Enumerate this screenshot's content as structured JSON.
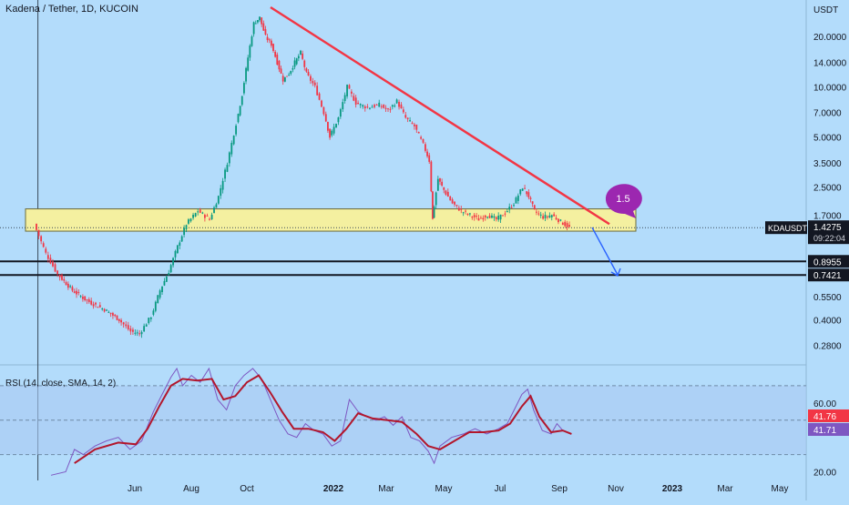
{
  "chart_title": "Kadena / Tether, 1D, KUCOIN",
  "currency_label": "USDT",
  "price_axis": {
    "scale": "log",
    "ylim": [
      0.24,
      30
    ],
    "ticks": [
      "20.0000",
      "14.0000",
      "10.0000",
      "7.0000",
      "5.0000",
      "3.5000",
      "2.5000",
      "1.7000",
      "0.5500",
      "0.4000",
      "0.2800"
    ],
    "tick_values": [
      20,
      14,
      10,
      7,
      5,
      3.5,
      2.5,
      1.7,
      0.55,
      0.4,
      0.28
    ]
  },
  "x_ticks": [
    "Jun",
    "Aug",
    "Oct",
    "2022",
    "Mar",
    "May",
    "Jul",
    "Sep",
    "Nov",
    "2023",
    "Mar",
    "May"
  ],
  "current_price": {
    "symbol": "KDAUSDT",
    "price": "1.4275",
    "countdown": "09:22:04",
    "color": "#131722"
  },
  "levels": [
    {
      "label": "0.8955",
      "value": 0.8955
    },
    {
      "label": "0.7421",
      "value": 0.7421
    }
  ],
  "support_zone": {
    "low": 1.36,
    "high": 1.85,
    "color": "#f4f0a0"
  },
  "callout": {
    "label": "1.5",
    "color": "#9c27b0"
  },
  "trendline": {
    "color": "#f23645"
  },
  "projection_arrow": {
    "color": "#2962ff"
  },
  "candle_colors": {
    "up": "#089981",
    "down": "#f23645"
  },
  "price_path": [
    {
      "t": 0,
      "p": 1.5
    },
    {
      "t": 0.4,
      "p": 1.0
    },
    {
      "t": 0.8,
      "p": 0.75
    },
    {
      "t": 1.3,
      "p": 0.6
    },
    {
      "t": 1.8,
      "p": 0.52
    },
    {
      "t": 2.4,
      "p": 0.46
    },
    {
      "t": 2.9,
      "p": 0.4
    },
    {
      "t": 3.3,
      "p": 0.34
    },
    {
      "t": 3.6,
      "p": 0.33
    },
    {
      "t": 4.0,
      "p": 0.42
    },
    {
      "t": 4.3,
      "p": 0.6
    },
    {
      "t": 4.6,
      "p": 0.78
    },
    {
      "t": 4.9,
      "p": 1.1
    },
    {
      "t": 5.2,
      "p": 1.5
    },
    {
      "t": 5.6,
      "p": 1.8
    },
    {
      "t": 6.0,
      "p": 1.6
    },
    {
      "t": 6.3,
      "p": 2.2
    },
    {
      "t": 6.6,
      "p": 3.5
    },
    {
      "t": 6.9,
      "p": 6.0
    },
    {
      "t": 7.1,
      "p": 9.0
    },
    {
      "t": 7.3,
      "p": 15.0
    },
    {
      "t": 7.5,
      "p": 24.0
    },
    {
      "t": 7.7,
      "p": 26.0
    },
    {
      "t": 7.9,
      "p": 20.0
    },
    {
      "t": 8.1,
      "p": 18.0
    },
    {
      "t": 8.3,
      "p": 14.0
    },
    {
      "t": 8.5,
      "p": 11.0
    },
    {
      "t": 8.7,
      "p": 12.0
    },
    {
      "t": 8.9,
      "p": 14.0
    },
    {
      "t": 9.1,
      "p": 16.0
    },
    {
      "t": 9.3,
      "p": 12.0
    },
    {
      "t": 9.6,
      "p": 10.0
    },
    {
      "t": 9.9,
      "p": 7.0
    },
    {
      "t": 10.1,
      "p": 5.0
    },
    {
      "t": 10.4,
      "p": 6.5
    },
    {
      "t": 10.7,
      "p": 10.0
    },
    {
      "t": 11.0,
      "p": 8.0
    },
    {
      "t": 11.4,
      "p": 7.5
    },
    {
      "t": 11.8,
      "p": 7.8
    },
    {
      "t": 12.1,
      "p": 7.2
    },
    {
      "t": 12.4,
      "p": 8.2
    },
    {
      "t": 12.7,
      "p": 6.5
    },
    {
      "t": 13.0,
      "p": 5.8
    },
    {
      "t": 13.3,
      "p": 4.5
    },
    {
      "t": 13.5,
      "p": 3.6
    },
    {
      "t": 13.6,
      "p": 1.6
    },
    {
      "t": 13.8,
      "p": 2.8
    },
    {
      "t": 14.0,
      "p": 2.4
    },
    {
      "t": 14.3,
      "p": 2.0
    },
    {
      "t": 14.6,
      "p": 1.8
    },
    {
      "t": 14.9,
      "p": 1.7
    },
    {
      "t": 15.2,
      "p": 1.6
    },
    {
      "t": 15.5,
      "p": 1.7
    },
    {
      "t": 15.8,
      "p": 1.6
    },
    {
      "t": 16.1,
      "p": 1.75
    },
    {
      "t": 16.4,
      "p": 2.0
    },
    {
      "t": 16.7,
      "p": 2.5
    },
    {
      "t": 16.9,
      "p": 2.2
    },
    {
      "t": 17.1,
      "p": 1.8
    },
    {
      "t": 17.4,
      "p": 1.65
    },
    {
      "t": 17.7,
      "p": 1.7
    },
    {
      "t": 18.0,
      "p": 1.55
    },
    {
      "t": 18.3,
      "p": 1.43
    }
  ],
  "rsi": {
    "label": "RSI (14, close, SMA, 14, 2)",
    "ticks": [
      "60.00",
      "20.00"
    ],
    "tick_values": [
      60,
      20
    ],
    "ylim": [
      15,
      80
    ],
    "bands": [
      70,
      50,
      30
    ],
    "value_label": "41.76",
    "value_label_color": "#f23645",
    "sma_label": "41.71",
    "sma_label_color": "#7e57c2",
    "rsi_color": "#7e57c2",
    "sma_color": "#b2162c",
    "rsi_path": [
      {
        "t": 0.5,
        "v": 18
      },
      {
        "t": 1.0,
        "v": 20
      },
      {
        "t": 1.3,
        "v": 33
      },
      {
        "t": 1.6,
        "v": 30
      },
      {
        "t": 2.0,
        "v": 35
      },
      {
        "t": 2.4,
        "v": 38
      },
      {
        "t": 2.8,
        "v": 40
      },
      {
        "t": 3.2,
        "v": 33
      },
      {
        "t": 3.6,
        "v": 38
      },
      {
        "t": 4.0,
        "v": 55
      },
      {
        "t": 4.3,
        "v": 65
      },
      {
        "t": 4.6,
        "v": 75
      },
      {
        "t": 4.8,
        "v": 80
      },
      {
        "t": 5.0,
        "v": 70
      },
      {
        "t": 5.3,
        "v": 76
      },
      {
        "t": 5.6,
        "v": 72
      },
      {
        "t": 5.9,
        "v": 80
      },
      {
        "t": 6.2,
        "v": 62
      },
      {
        "t": 6.5,
        "v": 56
      },
      {
        "t": 6.8,
        "v": 70
      },
      {
        "t": 7.1,
        "v": 76
      },
      {
        "t": 7.4,
        "v": 80
      },
      {
        "t": 7.7,
        "v": 74
      },
      {
        "t": 8.0,
        "v": 62
      },
      {
        "t": 8.3,
        "v": 50
      },
      {
        "t": 8.6,
        "v": 42
      },
      {
        "t": 8.9,
        "v": 40
      },
      {
        "t": 9.2,
        "v": 48
      },
      {
        "t": 9.5,
        "v": 44
      },
      {
        "t": 9.8,
        "v": 42
      },
      {
        "t": 10.1,
        "v": 35
      },
      {
        "t": 10.4,
        "v": 38
      },
      {
        "t": 10.7,
        "v": 62
      },
      {
        "t": 11.0,
        "v": 55
      },
      {
        "t": 11.3,
        "v": 52
      },
      {
        "t": 11.6,
        "v": 50
      },
      {
        "t": 11.9,
        "v": 52
      },
      {
        "t": 12.2,
        "v": 47
      },
      {
        "t": 12.5,
        "v": 52
      },
      {
        "t": 12.8,
        "v": 40
      },
      {
        "t": 13.1,
        "v": 38
      },
      {
        "t": 13.4,
        "v": 32
      },
      {
        "t": 13.6,
        "v": 25
      },
      {
        "t": 13.8,
        "v": 35
      },
      {
        "t": 14.2,
        "v": 40
      },
      {
        "t": 14.6,
        "v": 42
      },
      {
        "t": 15.0,
        "v": 45
      },
      {
        "t": 15.4,
        "v": 42
      },
      {
        "t": 15.8,
        "v": 45
      },
      {
        "t": 16.1,
        "v": 48
      },
      {
        "t": 16.4,
        "v": 58
      },
      {
        "t": 16.6,
        "v": 65
      },
      {
        "t": 16.8,
        "v": 68
      },
      {
        "t": 17.0,
        "v": 56
      },
      {
        "t": 17.3,
        "v": 44
      },
      {
        "t": 17.6,
        "v": 42
      },
      {
        "t": 17.8,
        "v": 48
      },
      {
        "t": 18.0,
        "v": 44
      },
      {
        "t": 18.3,
        "v": 42
      }
    ],
    "sma_path": [
      {
        "t": 1.3,
        "v": 25
      },
      {
        "t": 2.0,
        "v": 33
      },
      {
        "t": 2.8,
        "v": 37
      },
      {
        "t": 3.4,
        "v": 36
      },
      {
        "t": 3.8,
        "v": 45
      },
      {
        "t": 4.2,
        "v": 58
      },
      {
        "t": 4.6,
        "v": 70
      },
      {
        "t": 5.0,
        "v": 74
      },
      {
        "t": 5.5,
        "v": 73
      },
      {
        "t": 6.0,
        "v": 74
      },
      {
        "t": 6.4,
        "v": 62
      },
      {
        "t": 6.8,
        "v": 64
      },
      {
        "t": 7.2,
        "v": 72
      },
      {
        "t": 7.6,
        "v": 76
      },
      {
        "t": 8.0,
        "v": 66
      },
      {
        "t": 8.4,
        "v": 55
      },
      {
        "t": 8.8,
        "v": 45
      },
      {
        "t": 9.3,
        "v": 45
      },
      {
        "t": 9.8,
        "v": 43
      },
      {
        "t": 10.2,
        "v": 38
      },
      {
        "t": 10.6,
        "v": 45
      },
      {
        "t": 11.0,
        "v": 54
      },
      {
        "t": 11.5,
        "v": 51
      },
      {
        "t": 12.0,
        "v": 50
      },
      {
        "t": 12.5,
        "v": 49
      },
      {
        "t": 13.0,
        "v": 42
      },
      {
        "t": 13.4,
        "v": 35
      },
      {
        "t": 13.8,
        "v": 33
      },
      {
        "t": 14.3,
        "v": 38
      },
      {
        "t": 14.8,
        "v": 43
      },
      {
        "t": 15.3,
        "v": 43
      },
      {
        "t": 15.8,
        "v": 44
      },
      {
        "t": 16.2,
        "v": 48
      },
      {
        "t": 16.6,
        "v": 58
      },
      {
        "t": 16.9,
        "v": 64
      },
      {
        "t": 17.2,
        "v": 52
      },
      {
        "t": 17.6,
        "v": 43
      },
      {
        "t": 18.0,
        "v": 44
      },
      {
        "t": 18.3,
        "v": 42
      }
    ]
  }
}
